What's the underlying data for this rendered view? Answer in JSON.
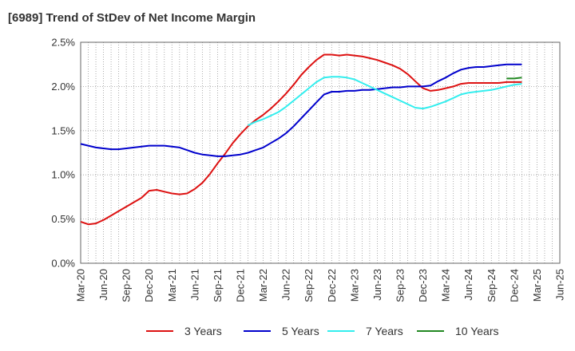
{
  "title": "[6989]  Trend of StDev of Net Income Margin",
  "chart_data": {
    "type": "line",
    "title": "[6989]  Trend of StDev of Net Income Margin",
    "xlabel": "",
    "ylabel": "",
    "x_ticks": [
      "Mar-20",
      "Jun-20",
      "Sep-20",
      "Dec-20",
      "Mar-21",
      "Jun-21",
      "Sep-21",
      "Dec-21",
      "Mar-22",
      "Jun-22",
      "Sep-22",
      "Dec-22",
      "Mar-23",
      "Jun-23",
      "Sep-23",
      "Dec-23",
      "Mar-24",
      "Jun-24",
      "Sep-24",
      "Dec-24",
      "Mar-25",
      "Jun-25"
    ],
    "y_ticks": [
      "0.0%",
      "0.5%",
      "1.0%",
      "1.5%",
      "2.0%",
      "2.5%"
    ],
    "ylim": [
      0,
      2.5
    ],
    "grid": true,
    "legend_position": "bottom",
    "series": [
      {
        "name": "3 Years",
        "color": "#dd1111",
        "points": [
          [
            "Mar-20",
            0.47
          ],
          [
            "Apr-20",
            0.44
          ],
          [
            "May-20",
            0.45
          ],
          [
            "Jun-20",
            0.49
          ],
          [
            "Jul-20",
            0.54
          ],
          [
            "Aug-20",
            0.59
          ],
          [
            "Sep-20",
            0.64
          ],
          [
            "Oct-20",
            0.69
          ],
          [
            "Nov-20",
            0.74
          ],
          [
            "Dec-20",
            0.82
          ],
          [
            "Jan-21",
            0.83
          ],
          [
            "Feb-21",
            0.81
          ],
          [
            "Mar-21",
            0.79
          ],
          [
            "Apr-21",
            0.78
          ],
          [
            "May-21",
            0.79
          ],
          [
            "Jun-21",
            0.84
          ],
          [
            "Jul-21",
            0.91
          ],
          [
            "Aug-21",
            1.01
          ],
          [
            "Sep-21",
            1.13
          ],
          [
            "Oct-21",
            1.24
          ],
          [
            "Nov-21",
            1.36
          ],
          [
            "Dec-21",
            1.46
          ],
          [
            "Jan-22",
            1.55
          ],
          [
            "Feb-22",
            1.62
          ],
          [
            "Mar-22",
            1.68
          ],
          [
            "Apr-22",
            1.75
          ],
          [
            "May-22",
            1.83
          ],
          [
            "Jun-22",
            1.92
          ],
          [
            "Jul-22",
            2.02
          ],
          [
            "Aug-22",
            2.13
          ],
          [
            "Sep-22",
            2.22
          ],
          [
            "Oct-22",
            2.3
          ],
          [
            "Nov-22",
            2.36
          ],
          [
            "Dec-22",
            2.36
          ],
          [
            "Jan-23",
            2.35
          ],
          [
            "Feb-23",
            2.36
          ],
          [
            "Mar-23",
            2.35
          ],
          [
            "Apr-23",
            2.34
          ],
          [
            "May-23",
            2.32
          ],
          [
            "Jun-23",
            2.3
          ],
          [
            "Jul-23",
            2.27
          ],
          [
            "Aug-23",
            2.24
          ],
          [
            "Sep-23",
            2.2
          ],
          [
            "Oct-23",
            2.14
          ],
          [
            "Nov-23",
            2.06
          ],
          [
            "Dec-23",
            1.98
          ],
          [
            "Jan-24",
            1.95
          ],
          [
            "Feb-24",
            1.96
          ],
          [
            "Mar-24",
            1.98
          ],
          [
            "Apr-24",
            2.0
          ],
          [
            "May-24",
            2.03
          ],
          [
            "Jun-24",
            2.04
          ],
          [
            "Jul-24",
            2.04
          ],
          [
            "Aug-24",
            2.04
          ],
          [
            "Sep-24",
            2.04
          ],
          [
            "Oct-24",
            2.04
          ],
          [
            "Nov-24",
            2.05
          ],
          [
            "Dec-24",
            2.05
          ],
          [
            "Jan-25",
            2.05
          ]
        ]
      },
      {
        "name": "5 Years",
        "color": "#0000cc",
        "points": [
          [
            "Mar-20",
            1.35
          ],
          [
            "Apr-20",
            1.33
          ],
          [
            "May-20",
            1.31
          ],
          [
            "Jun-20",
            1.3
          ],
          [
            "Jul-20",
            1.29
          ],
          [
            "Aug-20",
            1.29
          ],
          [
            "Sep-20",
            1.3
          ],
          [
            "Oct-20",
            1.31
          ],
          [
            "Nov-20",
            1.32
          ],
          [
            "Dec-20",
            1.33
          ],
          [
            "Jan-21",
            1.33
          ],
          [
            "Feb-21",
            1.33
          ],
          [
            "Mar-21",
            1.32
          ],
          [
            "Apr-21",
            1.31
          ],
          [
            "May-21",
            1.28
          ],
          [
            "Jun-21",
            1.25
          ],
          [
            "Jul-21",
            1.23
          ],
          [
            "Aug-21",
            1.22
          ],
          [
            "Sep-21",
            1.21
          ],
          [
            "Oct-21",
            1.21
          ],
          [
            "Nov-21",
            1.22
          ],
          [
            "Dec-21",
            1.23
          ],
          [
            "Jan-22",
            1.25
          ],
          [
            "Feb-22",
            1.28
          ],
          [
            "Mar-22",
            1.31
          ],
          [
            "Apr-22",
            1.36
          ],
          [
            "May-22",
            1.41
          ],
          [
            "Jun-22",
            1.47
          ],
          [
            "Jul-22",
            1.55
          ],
          [
            "Aug-22",
            1.64
          ],
          [
            "Sep-22",
            1.73
          ],
          [
            "Oct-22",
            1.82
          ],
          [
            "Nov-22",
            1.91
          ],
          [
            "Dec-22",
            1.94
          ],
          [
            "Jan-23",
            1.94
          ],
          [
            "Feb-23",
            1.95
          ],
          [
            "Mar-23",
            1.95
          ],
          [
            "Apr-23",
            1.96
          ],
          [
            "May-23",
            1.96
          ],
          [
            "Jun-23",
            1.97
          ],
          [
            "Jul-23",
            1.98
          ],
          [
            "Aug-23",
            1.99
          ],
          [
            "Sep-23",
            1.99
          ],
          [
            "Oct-23",
            2.0
          ],
          [
            "Nov-23",
            2.0
          ],
          [
            "Dec-23",
            2.0
          ],
          [
            "Jan-24",
            2.01
          ],
          [
            "Feb-24",
            2.06
          ],
          [
            "Mar-24",
            2.1
          ],
          [
            "Apr-24",
            2.15
          ],
          [
            "May-24",
            2.19
          ],
          [
            "Jun-24",
            2.21
          ],
          [
            "Jul-24",
            2.22
          ],
          [
            "Aug-24",
            2.22
          ],
          [
            "Sep-24",
            2.23
          ],
          [
            "Oct-24",
            2.24
          ],
          [
            "Nov-24",
            2.25
          ],
          [
            "Dec-24",
            2.25
          ],
          [
            "Jan-25",
            2.25
          ]
        ]
      },
      {
        "name": "7 Years",
        "color": "#33eeee",
        "points": [
          [
            "Jan-22",
            1.56
          ],
          [
            "Feb-22",
            1.6
          ],
          [
            "Mar-22",
            1.63
          ],
          [
            "Apr-22",
            1.67
          ],
          [
            "May-22",
            1.71
          ],
          [
            "Jun-22",
            1.77
          ],
          [
            "Jul-22",
            1.84
          ],
          [
            "Aug-22",
            1.91
          ],
          [
            "Sep-22",
            1.98
          ],
          [
            "Oct-22",
            2.05
          ],
          [
            "Nov-22",
            2.1
          ],
          [
            "Dec-22",
            2.11
          ],
          [
            "Jan-23",
            2.11
          ],
          [
            "Feb-23",
            2.1
          ],
          [
            "Mar-23",
            2.08
          ],
          [
            "Apr-23",
            2.04
          ],
          [
            "May-23",
            2.0
          ],
          [
            "Jun-23",
            1.96
          ],
          [
            "Jul-23",
            1.92
          ],
          [
            "Aug-23",
            1.88
          ],
          [
            "Sep-23",
            1.84
          ],
          [
            "Oct-23",
            1.8
          ],
          [
            "Nov-23",
            1.76
          ],
          [
            "Dec-23",
            1.75
          ],
          [
            "Jan-24",
            1.77
          ],
          [
            "Feb-24",
            1.8
          ],
          [
            "Mar-24",
            1.83
          ],
          [
            "Apr-24",
            1.87
          ],
          [
            "May-24",
            1.91
          ],
          [
            "Jun-24",
            1.93
          ],
          [
            "Jul-24",
            1.94
          ],
          [
            "Aug-24",
            1.95
          ],
          [
            "Sep-24",
            1.96
          ],
          [
            "Oct-24",
            1.98
          ],
          [
            "Nov-24",
            2.0
          ],
          [
            "Dec-24",
            2.02
          ],
          [
            "Jan-25",
            2.03
          ]
        ]
      },
      {
        "name": "10 Years",
        "color": "#228822",
        "points": [
          [
            "Nov-24",
            2.09
          ],
          [
            "Dec-24",
            2.09
          ],
          [
            "Jan-25",
            2.1
          ]
        ]
      }
    ]
  }
}
